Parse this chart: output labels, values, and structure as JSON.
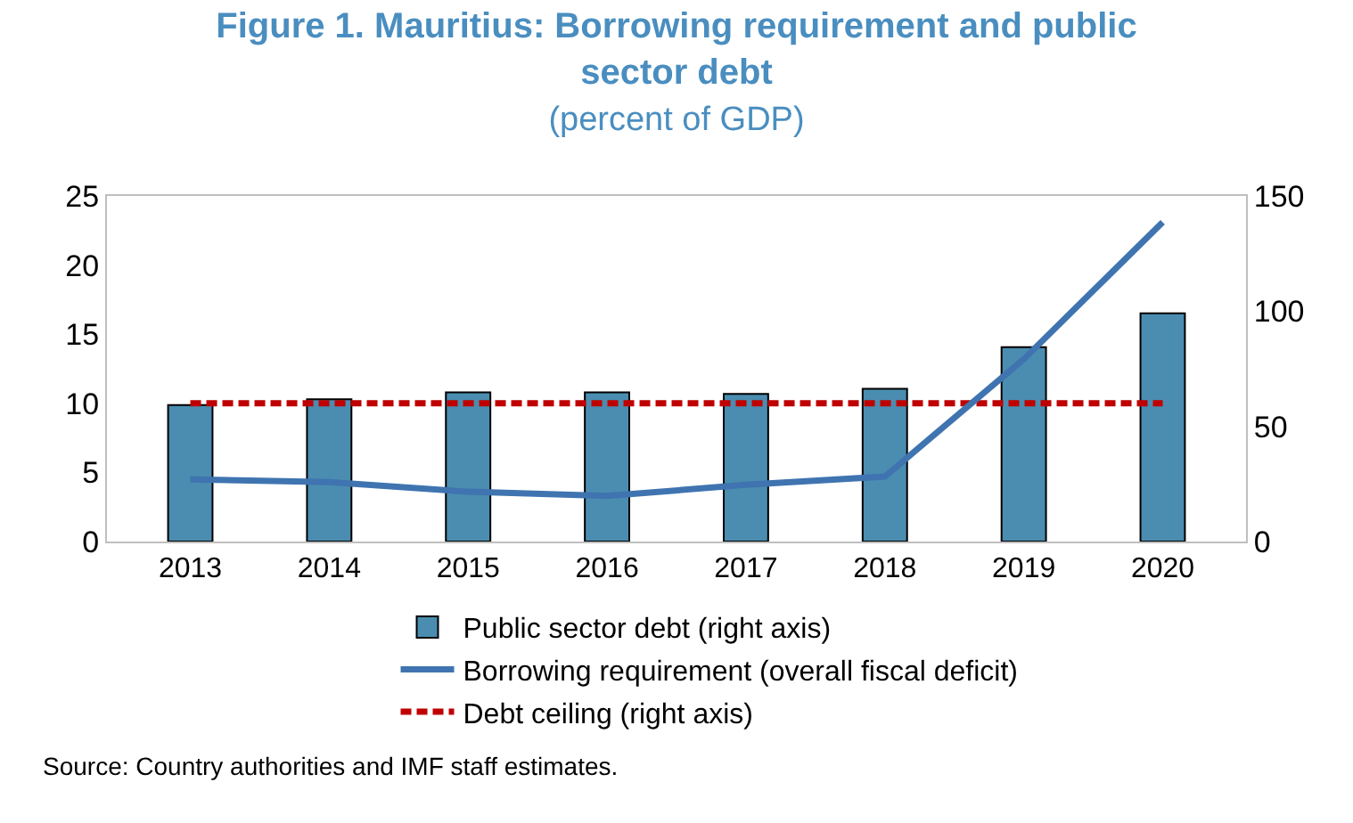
{
  "chart_data": {
    "type": "bar",
    "title": "Figure 1. Mauritius: Borrowing requirement and public sector debt",
    "subtitle": "(percent of GDP)",
    "categories": [
      "2013",
      "2014",
      "2015",
      "2016",
      "2017",
      "2018",
      "2019",
      "2020"
    ],
    "series": [
      {
        "name": "Public sector debt (right axis)",
        "axis": "y2",
        "color": "#4a8db0",
        "values": [
          59.2,
          61.8,
          64.8,
          64.8,
          64.1,
          66.3,
          84.4,
          99.1
        ]
      },
      {
        "name": "Borrowing requirement (overall fiscal deficit)",
        "type": "line",
        "axis": "y",
        "color": "#3f74b0",
        "values": [
          4.5,
          4.3,
          3.6,
          3.3,
          4.1,
          4.7,
          13.2,
          23.1
        ]
      },
      {
        "name": "Debt ceiling (right axis)",
        "type": "line",
        "axis": "y2",
        "color": "#c00000",
        "line_style": "dashed",
        "values": [
          60,
          60,
          60,
          60,
          60,
          60,
          60,
          60
        ]
      }
    ],
    "ylim": [
      0,
      25
    ],
    "yticks": [
      0,
      5,
      10,
      15,
      20,
      25
    ],
    "y2lim": [
      0,
      150
    ],
    "y2ticks": [
      0,
      50,
      100,
      150
    ],
    "legend": "bottom",
    "marker": "none",
    "annotations": [
      "Source: Country authorities and IMF staff estimates."
    ]
  }
}
